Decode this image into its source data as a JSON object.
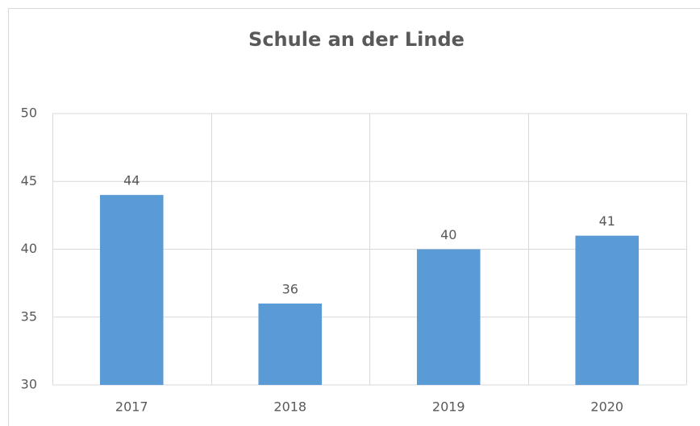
{
  "chart_data": {
    "type": "bar",
    "title": "Schule an der Linde",
    "categories": [
      "2017",
      "2018",
      "2019",
      "2020"
    ],
    "values": [
      44,
      36,
      40,
      41
    ],
    "color": "#5b9bd5",
    "ylim": [
      30,
      50
    ],
    "yticks": [
      30,
      35,
      40,
      45,
      50
    ],
    "grid": true,
    "data_labels": true
  }
}
